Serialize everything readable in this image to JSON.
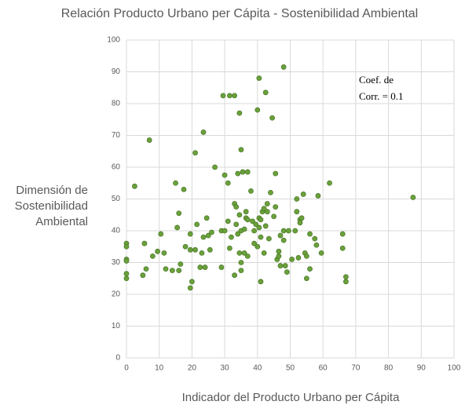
{
  "chart_data": {
    "type": "scatter",
    "title": "Relación Producto Urbano per Cápita - Sostenibilidad Ambiental",
    "x_label": "Indicador del Producto Urbano per Cápita",
    "y_label": [
      "Dimensión de",
      "Sostenibilidad",
      "Ambiental"
    ],
    "annotation": [
      "Coef. de",
      "Corr. = 0.1"
    ],
    "color": "#6aa13b",
    "grid": true,
    "xlim": [
      0,
      100
    ],
    "xticks": [
      0,
      10,
      20,
      30,
      40,
      50,
      60,
      70,
      80,
      90,
      100
    ],
    "ylim": [
      0,
      100
    ],
    "yticks": [
      0,
      10,
      20,
      30,
      40,
      50,
      60,
      70,
      80,
      90,
      100
    ],
    "x": [
      0,
      0,
      0,
      0,
      0,
      0,
      2.5,
      5,
      5.5,
      6,
      7,
      8,
      9.5,
      10.5,
      11.5,
      12,
      14,
      15,
      15.5,
      16,
      16.5,
      16,
      17.5,
      18,
      19.5,
      19.5,
      19.5,
      20,
      21,
      21,
      21.5,
      22.5,
      23,
      23.5,
      23.5,
      24,
      24.5,
      25,
      25.5,
      26,
      27,
      29,
      29,
      29.5,
      30,
      30,
      31,
      31,
      31.5,
      31.5,
      32,
      33,
      33,
      33,
      33.5,
      33.5,
      34,
      34,
      34.5,
      34.5,
      34.5,
      35,
      35,
      35,
      35,
      35.5,
      36,
      36,
      36.5,
      36.5,
      37,
      37,
      37,
      38,
      38.5,
      39,
      39.5,
      39,
      40,
      40,
      40.5,
      40.5,
      40.5,
      41,
      41,
      41,
      41.5,
      42,
      42,
      42.5,
      42.5,
      43,
      43,
      43.5,
      44,
      44.5,
      45,
      45.5,
      45.5,
      46,
      46.5,
      46.5,
      47,
      47,
      48,
      48,
      48,
      48.5,
      49,
      49.5,
      50.5,
      51.5,
      52,
      52,
      52.5,
      53,
      53,
      53.5,
      54,
      54.5,
      55,
      55,
      56,
      56,
      57.5,
      58.5,
      58,
      59.5,
      62,
      66,
      66,
      67,
      67,
      87.5
    ],
    "values": [
      36,
      35,
      31,
      30.5,
      26.5,
      25,
      54,
      26,
      36,
      28,
      68.5,
      32,
      33.5,
      39,
      33,
      28,
      27.5,
      55,
      41,
      45.5,
      29.5,
      27.5,
      53,
      35,
      39,
      34,
      22,
      24,
      64.5,
      34,
      42,
      28.5,
      33,
      38,
      71,
      28.5,
      44,
      38.5,
      34,
      39.5,
      60,
      40,
      28.5,
      82.5,
      40,
      57.5,
      43,
      55,
      82.5,
      34.5,
      38,
      82.5,
      48.5,
      26,
      42,
      47.5,
      39,
      58,
      77,
      33,
      45,
      65.5,
      40,
      30,
      27.5,
      58.5,
      40.5,
      33,
      44,
      46,
      32,
      43.5,
      58.5,
      52.5,
      43,
      40,
      42,
      36,
      35,
      78,
      88,
      44,
      41,
      24,
      38,
      43.5,
      46,
      47,
      33,
      83.5,
      41.5,
      48.5,
      46,
      37.5,
      52,
      75.5,
      44.5,
      58,
      47.5,
      31,
      32,
      33.5,
      29,
      38.5,
      91.5,
      40,
      37,
      29,
      27,
      40,
      31,
      40,
      50,
      46,
      31.5,
      43.5,
      42.5,
      44,
      51.5,
      33,
      25,
      32,
      39,
      28,
      37.5,
      51,
      35.5,
      33,
      55,
      39,
      34.5,
      25.5,
      24,
      50.5
    ]
  }
}
